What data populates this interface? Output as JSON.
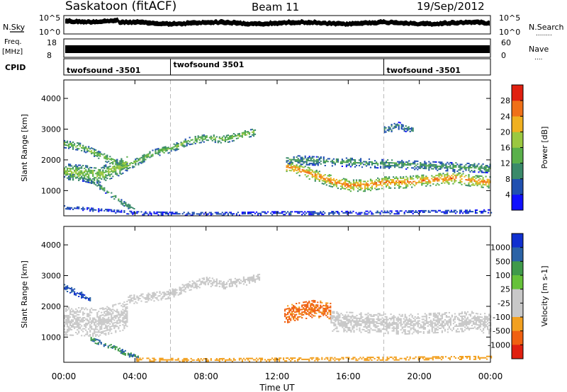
{
  "header": {
    "station": "Saskatoon (fitACF)",
    "beam": "Beam 11",
    "date": "19/Sep/2012"
  },
  "noise_panel": {
    "left_label": "N.Sky",
    "right_label": "N.Search",
    "right_legend": "........",
    "left_ticks": [
      "10^5",
      "10^0"
    ],
    "right_ticks": [
      "10^5",
      "10^0"
    ]
  },
  "freq_panel": {
    "left_label_1": "Freq.",
    "left_label_2": "[MHz]",
    "right_label": "Nave",
    "right_legend": "....",
    "left_ticks": [
      "18",
      "8"
    ],
    "right_ticks": [
      "60",
      "0"
    ]
  },
  "cpid_panel": {
    "label": "CPID",
    "segments": [
      {
        "text": "twofsound -3501",
        "start_h": 0
      },
      {
        "text": "twofsound 3501",
        "start_h": 6
      },
      {
        "text": "twofsound -3501",
        "start_h": 18
      }
    ]
  },
  "x_axis": {
    "title": "Time UT",
    "range_hours": [
      0,
      24
    ],
    "tick_labels": [
      "00:00",
      "04:00",
      "08:00",
      "12:00",
      "16:00",
      "20:00",
      "00:00"
    ]
  },
  "chart_data": [
    {
      "type": "heatmap",
      "quantity": "power",
      "ylabel": "Slant Range [km]",
      "ylim_km": [
        180,
        4600
      ],
      "y_ticks": [
        "1000",
        "2000",
        "3000",
        "4000"
      ],
      "colorbar": {
        "label": "Power [dB]",
        "range": [
          0,
          32
        ],
        "tick_labels": [
          "4",
          "8",
          "12",
          "16",
          "20",
          "24",
          "28"
        ],
        "colors": [
          "#1010ff",
          "#2050b0",
          "#3a8a6a",
          "#5ab04a",
          "#9bc840",
          "#f0b020",
          "#f07018",
          "#e02010"
        ]
      },
      "bands": [
        {
          "name": "near range band",
          "x": [
            0,
            2,
            4,
            6,
            8,
            10,
            12,
            14,
            16,
            18,
            20,
            22,
            24
          ],
          "y": [
            450,
            350,
            260,
            240,
            230,
            240,
            260,
            260,
            270,
            280,
            290,
            300,
            320
          ],
          "width_km": 120,
          "value": 6
        },
        {
          "name": "descending band",
          "x": [
            0,
            1.5,
            2.5,
            3.5,
            4
          ],
          "y": [
            1500,
            1300,
            900,
            500,
            350
          ],
          "width_km": 150,
          "value": 14
        },
        {
          "name": "upper band",
          "x": [
            0,
            1,
            2.5,
            3.5,
            5,
            6,
            7,
            8,
            9,
            10,
            10.8
          ],
          "y": [
            2500,
            2400,
            2000,
            1750,
            2200,
            2350,
            2600,
            2700,
            2650,
            2800,
            2900
          ],
          "width_km": 250,
          "value": 16
        },
        {
          "name": "main band",
          "x": [
            0,
            1,
            2,
            3,
            3.6
          ],
          "y": [
            1600,
            1550,
            1500,
            1700,
            1900
          ],
          "width_km": 500,
          "value": 18
        },
        {
          "name": "evening band",
          "x": [
            12.5,
            13,
            14,
            15,
            16,
            17,
            18,
            19,
            20,
            21,
            22,
            23,
            24
          ],
          "y": [
            1750,
            1700,
            1500,
            1300,
            1150,
            1150,
            1250,
            1250,
            1300,
            1350,
            1400,
            1300,
            1250
          ],
          "width_km": 380,
          "value": 26
        },
        {
          "name": "evening upper",
          "x": [
            12.5,
            14,
            16,
            18,
            20,
            22,
            24
          ],
          "y": [
            2000,
            1950,
            1900,
            1850,
            1800,
            1750,
            1700
          ],
          "width_km": 280,
          "value": 12
        },
        {
          "name": "patch 3100",
          "x": [
            18,
            18.8,
            19.6
          ],
          "y": [
            2950,
            3100,
            2950
          ],
          "width_km": 250,
          "value": 10
        }
      ]
    },
    {
      "type": "heatmap",
      "quantity": "velocity",
      "ylabel": "Slant Range [km]",
      "ylim_km": [
        180,
        4600
      ],
      "y_ticks": [
        "1000",
        "2000",
        "3000",
        "4000"
      ],
      "colorbar": {
        "label": "Velocity [m s-1]",
        "tick_labels": [
          "1000",
          "500",
          "100",
          "25",
          "-25",
          "-100",
          "-500",
          "-1000"
        ],
        "colors": [
          "#1030d0",
          "#2b63a6",
          "#3f9a4a",
          "#66c23a",
          "#c8c8c8",
          "#c8c8c8",
          "#f2a020",
          "#f06010",
          "#e02010"
        ]
      },
      "bands": [
        {
          "name": "main grey",
          "x": [
            0,
            2,
            3.6
          ],
          "y": [
            1500,
            1450,
            1700
          ],
          "width_km": 900,
          "value": 0
        },
        {
          "name": "upper grey",
          "x": [
            3.6,
            5,
            6,
            7,
            8,
            9,
            10,
            11
          ],
          "y": [
            2200,
            2300,
            2400,
            2650,
            2800,
            2700,
            2800,
            2900
          ],
          "width_km": 300,
          "value": 0
        },
        {
          "name": "descending green",
          "x": [
            1.5,
            2.5,
            3.5,
            4.2
          ],
          "y": [
            900,
            700,
            450,
            280
          ],
          "width_km": 150,
          "value": 400
        },
        {
          "name": "near range orange",
          "x": [
            4,
            8,
            12,
            16,
            20,
            24
          ],
          "y": [
            260,
            240,
            260,
            280,
            300,
            320
          ],
          "width_km": 120,
          "value": -300
        },
        {
          "name": "red patch",
          "x": [
            12.4,
            13,
            14,
            15
          ],
          "y": [
            1700,
            1800,
            1900,
            1850
          ],
          "width_km": 550,
          "value": -600
        },
        {
          "name": "evening grey",
          "x": [
            15,
            17,
            19,
            21,
            23,
            24
          ],
          "y": [
            1500,
            1450,
            1400,
            1450,
            1500,
            1400
          ],
          "width_km": 650,
          "value": 0
        },
        {
          "name": "early blue",
          "x": [
            0,
            0.8,
            1.5
          ],
          "y": [
            2600,
            2400,
            2200
          ],
          "width_km": 200,
          "value": 800
        }
      ]
    }
  ]
}
